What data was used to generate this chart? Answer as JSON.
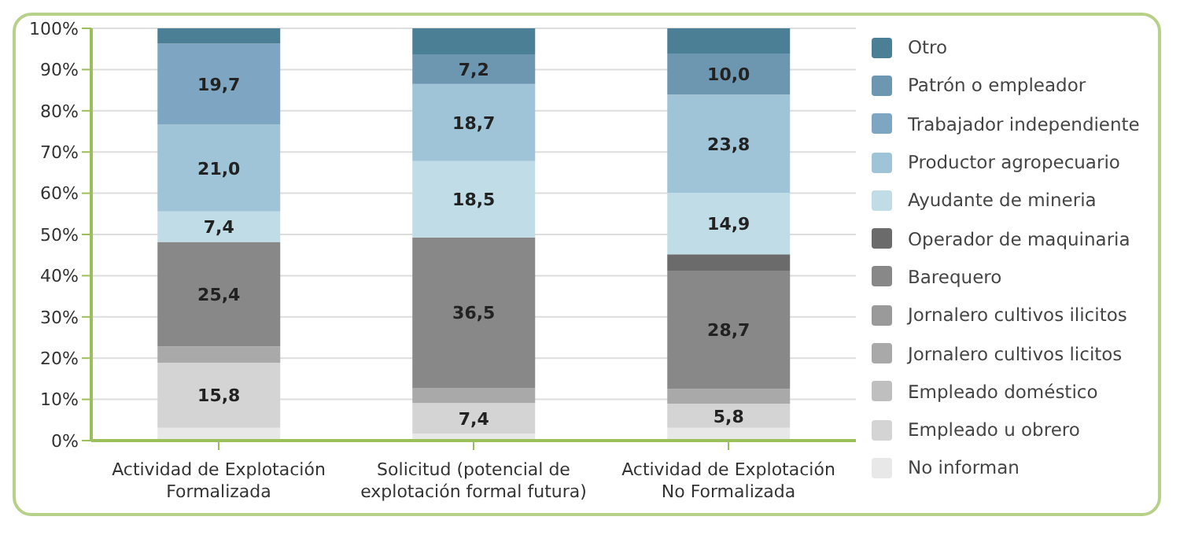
{
  "chart_data": {
    "type": "bar",
    "stacked": true,
    "categories": [
      "Actividad de Explotación Formalizada",
      "Solicitud (potencial de explotación formal futura)",
      "Actividad de Explotación No Formalizada"
    ],
    "series": [
      {
        "name": "No informan",
        "color": "#e8e8e8",
        "values": [
          3.1,
          1.7,
          3.1
        ],
        "value_labels": [
          null,
          null,
          null
        ]
      },
      {
        "name": "Empleado u obrero",
        "color": "#d4d4d4",
        "values": [
          15.8,
          7.4,
          5.8
        ],
        "value_labels": [
          "15,8",
          "7,4",
          "5,8"
        ]
      },
      {
        "name": "Empleado doméstico",
        "color": "#bfbfbf",
        "values": [
          0,
          0,
          0
        ],
        "value_labels": [
          null,
          null,
          null
        ]
      },
      {
        "name": "Jornalero cultivos licitos",
        "color": "#a9a9a9",
        "values": [
          3.9,
          3.7,
          3.6
        ],
        "value_labels": [
          null,
          null,
          null
        ]
      },
      {
        "name": "Jornalero cultivos ilicitos",
        "color": "#9a9a9a",
        "values": [
          0,
          0,
          0
        ],
        "value_labels": [
          null,
          null,
          null
        ]
      },
      {
        "name": "Barequero",
        "color": "#888888",
        "values": [
          25.4,
          36.5,
          28.7
        ],
        "value_labels": [
          "25,4",
          "36,5",
          "28,7"
        ]
      },
      {
        "name": "Operador de maquinaria",
        "color": "#6b6b6b",
        "values": [
          0,
          0,
          4.0
        ],
        "value_labels": [
          null,
          null,
          null
        ]
      },
      {
        "name": "Ayudante de mineria",
        "color": "#c0dde7",
        "values": [
          7.4,
          18.5,
          14.9
        ],
        "value_labels": [
          "7,4",
          "18,5",
          "14,9"
        ]
      },
      {
        "name": "Productor agropecuario",
        "color": "#9fc4d7",
        "values": [
          21.0,
          18.7,
          23.8
        ],
        "value_labels": [
          "21,0",
          "18,7",
          "23,8"
        ]
      },
      {
        "name": "Trabajador independiente",
        "color": "#7ea6c2",
        "values": [
          19.7,
          0,
          0
        ],
        "value_labels": [
          "19,7",
          null,
          null
        ]
      },
      {
        "name": "Patrón o empleador",
        "color": "#6d96b0",
        "values": [
          0,
          7.2,
          10.0
        ],
        "value_labels": [
          null,
          "7,2",
          "10,0"
        ]
      },
      {
        "name": "Otro",
        "color": "#4a7f96",
        "values": [
          3.7,
          6.3,
          6.1
        ],
        "value_labels": [
          null,
          null,
          null
        ]
      }
    ],
    "ylim": [
      0,
      100
    ],
    "yticks": [
      {
        "value": 0,
        "label": "0%"
      },
      {
        "value": 10,
        "label": "10%"
      },
      {
        "value": 20,
        "label": "20%"
      },
      {
        "value": 30,
        "label": "30%"
      },
      {
        "value": 40,
        "label": "40%"
      },
      {
        "value": 50,
        "label": "50%"
      },
      {
        "value": 60,
        "label": "60%"
      },
      {
        "value": 70,
        "label": "70%"
      },
      {
        "value": 80,
        "label": "80%"
      },
      {
        "value": 90,
        "label": "90%"
      },
      {
        "value": 100,
        "label": "100%"
      }
    ],
    "grid": "y",
    "legend": "right"
  }
}
